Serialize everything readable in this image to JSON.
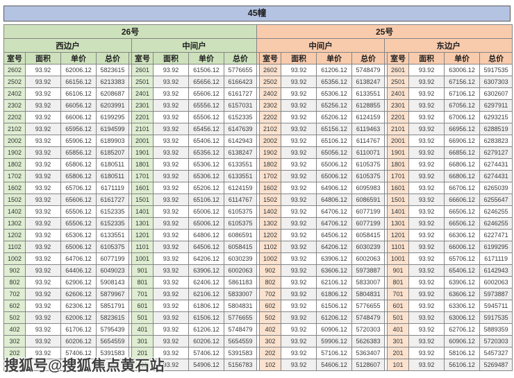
{
  "title": "45幢",
  "watermark": "搜狐号@搜狐焦点黄石站",
  "column_headers": [
    "室号",
    "面积",
    "单价",
    "总价"
  ],
  "units": [
    {
      "name": "26号",
      "positions": [
        "西边户",
        "中间户"
      ]
    },
    {
      "name": "25号",
      "positions": [
        "中间户",
        "东边户"
      ]
    }
  ],
  "colors": {
    "title_bg": "#b5c3e3",
    "unit26_bg": "#cde2bc",
    "unit25_bg": "#f8cbad",
    "room26_bg": "#dfeed2",
    "room25_bg": "#fae2cf",
    "stripe": "#f0f0f0",
    "border": "#848484"
  },
  "groups": [
    {
      "unit": "26号",
      "position": "西边户",
      "rows": [
        [
          "2602",
          "93.92",
          "62006.12",
          "5823615"
        ],
        [
          "2502",
          "93.92",
          "66156.12",
          "6213383"
        ],
        [
          "2402",
          "93.92",
          "66106.12",
          "6208687"
        ],
        [
          "2302",
          "93.92",
          "66056.12",
          "6203991"
        ],
        [
          "2202",
          "93.92",
          "66006.12",
          "6199295"
        ],
        [
          "2102",
          "93.92",
          "65956.12",
          "6194599"
        ],
        [
          "2002",
          "93.92",
          "65906.12",
          "6189903"
        ],
        [
          "1902",
          "93.92",
          "65856.12",
          "6185207"
        ],
        [
          "1802",
          "93.92",
          "65806.12",
          "6180511"
        ],
        [
          "1702",
          "93.92",
          "65806.12",
          "6180511"
        ],
        [
          "1602",
          "93.92",
          "65706.12",
          "6171119"
        ],
        [
          "1502",
          "93.92",
          "65606.12",
          "6161727"
        ],
        [
          "1402",
          "93.92",
          "65506.12",
          "6152335"
        ],
        [
          "1302",
          "93.92",
          "65506.12",
          "6152335"
        ],
        [
          "1202",
          "93.92",
          "65306.12",
          "6133551"
        ],
        [
          "1102",
          "93.92",
          "65006.12",
          "6105375"
        ],
        [
          "1002",
          "93.92",
          "64706.12",
          "6077199"
        ],
        [
          "902",
          "93.92",
          "64406.12",
          "6049023"
        ],
        [
          "802",
          "93.92",
          "62906.12",
          "5908143"
        ],
        [
          "702",
          "93.92",
          "62606.12",
          "5879967"
        ],
        [
          "602",
          "93.92",
          "62306.12",
          "5851791"
        ],
        [
          "502",
          "93.92",
          "62006.12",
          "5823615"
        ],
        [
          "402",
          "93.92",
          "61706.12",
          "5795439"
        ],
        [
          "302",
          "93.92",
          "60206.12",
          "5654559"
        ],
        [
          "202",
          "93.92",
          "57406.12",
          "5391583"
        ],
        [
          "",
          "",
          "",
          "743"
        ]
      ]
    },
    {
      "unit": "26号",
      "position": "中间户",
      "rows": [
        [
          "2601",
          "93.92",
          "61506.12",
          "5776655"
        ],
        [
          "2501",
          "93.92",
          "65656.12",
          "6166423"
        ],
        [
          "2401",
          "93.92",
          "65606.12",
          "6161727"
        ],
        [
          "2301",
          "93.92",
          "65556.12",
          "6157031"
        ],
        [
          "2201",
          "93.92",
          "65506.12",
          "6152335"
        ],
        [
          "2101",
          "93.92",
          "65456.12",
          "6147639"
        ],
        [
          "2001",
          "93.92",
          "65406.12",
          "6142943"
        ],
        [
          "1901",
          "93.92",
          "65356.12",
          "6138247"
        ],
        [
          "1801",
          "93.92",
          "65306.12",
          "6133551"
        ],
        [
          "1701",
          "93.92",
          "65306.12",
          "6133551"
        ],
        [
          "1601",
          "93.92",
          "65206.12",
          "6124159"
        ],
        [
          "1501",
          "93.92",
          "65106.12",
          "6114767"
        ],
        [
          "1401",
          "93.92",
          "65006.12",
          "6105375"
        ],
        [
          "1301",
          "93.92",
          "65006.12",
          "6105375"
        ],
        [
          "1201",
          "93.92",
          "64806.12",
          "6086591"
        ],
        [
          "1101",
          "93.92",
          "64506.12",
          "6058415"
        ],
        [
          "1001",
          "93.92",
          "64206.12",
          "6030239"
        ],
        [
          "901",
          "93.92",
          "63906.12",
          "6002063"
        ],
        [
          "801",
          "93.92",
          "62406.12",
          "5861183"
        ],
        [
          "701",
          "93.92",
          "62106.12",
          "5833007"
        ],
        [
          "601",
          "93.92",
          "61806.12",
          "5804831"
        ],
        [
          "501",
          "93.92",
          "61506.12",
          "5776655"
        ],
        [
          "401",
          "93.92",
          "61206.12",
          "5748479"
        ],
        [
          "301",
          "93.92",
          "60206.12",
          "5654559"
        ],
        [
          "201",
          "93.92",
          "57406.12",
          "5391583"
        ],
        [
          "101",
          "93.92",
          "54906.12",
          "5156783"
        ]
      ]
    },
    {
      "unit": "25号",
      "position": "中间户",
      "rows": [
        [
          "2602",
          "93.92",
          "61206.12",
          "5748479"
        ],
        [
          "2502",
          "93.92",
          "65356.12",
          "6138247"
        ],
        [
          "2402",
          "93.92",
          "65306.12",
          "6133551"
        ],
        [
          "2302",
          "93.92",
          "65256.12",
          "6128855"
        ],
        [
          "2202",
          "93.92",
          "65206.12",
          "6124159"
        ],
        [
          "2102",
          "93.92",
          "65156.12",
          "6119463"
        ],
        [
          "2002",
          "93.92",
          "65106.12",
          "6114767"
        ],
        [
          "1902",
          "93.92",
          "65056.12",
          "6110071"
        ],
        [
          "1802",
          "93.92",
          "65006.12",
          "6105375"
        ],
        [
          "1702",
          "93.92",
          "65006.12",
          "6105375"
        ],
        [
          "1602",
          "93.92",
          "64906.12",
          "6095983"
        ],
        [
          "1502",
          "93.92",
          "64806.12",
          "6086591"
        ],
        [
          "1402",
          "93.92",
          "64706.12",
          "6077199"
        ],
        [
          "1302",
          "93.92",
          "64706.12",
          "6077199"
        ],
        [
          "1202",
          "93.92",
          "64506.12",
          "6058415"
        ],
        [
          "1102",
          "93.92",
          "64206.12",
          "6030239"
        ],
        [
          "1002",
          "93.92",
          "63906.12",
          "6002063"
        ],
        [
          "902",
          "93.92",
          "63606.12",
          "5973887"
        ],
        [
          "802",
          "93.92",
          "62106.12",
          "5833007"
        ],
        [
          "702",
          "93.92",
          "61806.12",
          "5804831"
        ],
        [
          "602",
          "93.92",
          "61506.12",
          "5776655"
        ],
        [
          "502",
          "93.92",
          "61206.12",
          "5748479"
        ],
        [
          "402",
          "93.92",
          "60906.12",
          "5720303"
        ],
        [
          "302",
          "93.92",
          "59906.12",
          "5626383"
        ],
        [
          "202",
          "93.92",
          "57106.12",
          "5363407"
        ],
        [
          "102",
          "93.92",
          "54606.12",
          "5128607"
        ]
      ]
    },
    {
      "unit": "25号",
      "position": "东边户",
      "rows": [
        [
          "2601",
          "93.92",
          "63006.12",
          "5917535"
        ],
        [
          "2501",
          "93.92",
          "67156.12",
          "6307303"
        ],
        [
          "2401",
          "93.92",
          "67106.12",
          "6302607"
        ],
        [
          "2301",
          "93.92",
          "67056.12",
          "6297911"
        ],
        [
          "2201",
          "93.92",
          "67006.12",
          "6293215"
        ],
        [
          "2101",
          "93.92",
          "66956.12",
          "6288519"
        ],
        [
          "2001",
          "93.92",
          "66906.12",
          "6283823"
        ],
        [
          "1901",
          "93.92",
          "66856.12",
          "6279127"
        ],
        [
          "1801",
          "93.92",
          "66806.12",
          "6274431"
        ],
        [
          "1701",
          "93.92",
          "66806.12",
          "6274431"
        ],
        [
          "1601",
          "93.92",
          "66706.12",
          "6265039"
        ],
        [
          "1501",
          "93.92",
          "66606.12",
          "6255647"
        ],
        [
          "1401",
          "93.92",
          "66506.12",
          "6246255"
        ],
        [
          "1301",
          "93.92",
          "66506.12",
          "6246255"
        ],
        [
          "1201",
          "93.92",
          "66306.12",
          "6227471"
        ],
        [
          "1101",
          "93.92",
          "66006.12",
          "6199295"
        ],
        [
          "1001",
          "93.92",
          "65706.12",
          "6171119"
        ],
        [
          "901",
          "93.92",
          "65406.12",
          "6142943"
        ],
        [
          "801",
          "93.92",
          "63906.12",
          "6002063"
        ],
        [
          "701",
          "93.92",
          "63606.12",
          "5973887"
        ],
        [
          "601",
          "93.92",
          "63306.12",
          "5945711"
        ],
        [
          "501",
          "93.92",
          "63006.12",
          "5917535"
        ],
        [
          "401",
          "93.92",
          "62706.12",
          "5889359"
        ],
        [
          "301",
          "93.92",
          "60906.12",
          "5720303"
        ],
        [
          "201",
          "93.92",
          "58106.12",
          "5457327"
        ],
        [
          "101",
          "93.92",
          "56106.12",
          "5269487"
        ]
      ]
    }
  ]
}
